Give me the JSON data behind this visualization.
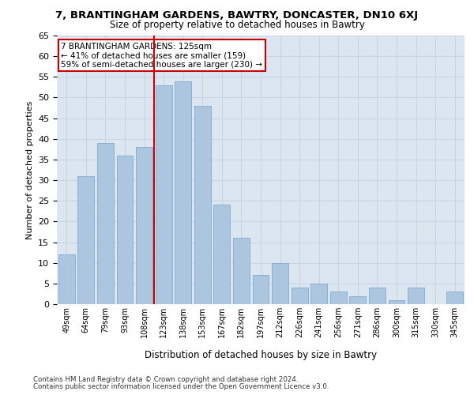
{
  "title_line1": "7, BRANTINGHAM GARDENS, BAWTRY, DONCASTER, DN10 6XJ",
  "title_line2": "Size of property relative to detached houses in Bawtry",
  "xlabel": "Distribution of detached houses by size in Bawtry",
  "ylabel": "Number of detached properties",
  "categories": [
    "49sqm",
    "64sqm",
    "79sqm",
    "93sqm",
    "108sqm",
    "123sqm",
    "138sqm",
    "153sqm",
    "167sqm",
    "182sqm",
    "197sqm",
    "212sqm",
    "226sqm",
    "241sqm",
    "256sqm",
    "271sqm",
    "286sqm",
    "300sqm",
    "315sqm",
    "330sqm",
    "345sqm"
  ],
  "values": [
    12,
    31,
    39,
    36,
    38,
    53,
    54,
    48,
    24,
    16,
    7,
    10,
    4,
    5,
    3,
    2,
    4,
    1,
    4,
    0,
    3
  ],
  "bar_color": "#adc6e0",
  "bar_edge_color": "#8aafd4",
  "vline_color": "#cc0000",
  "ylim": [
    0,
    65
  ],
  "yticks": [
    0,
    5,
    10,
    15,
    20,
    25,
    30,
    35,
    40,
    45,
    50,
    55,
    60,
    65
  ],
  "annotation_text": "7 BRANTINGHAM GARDENS: 125sqm\n← 41% of detached houses are smaller (159)\n59% of semi-detached houses are larger (230) →",
  "annotation_box_color": "#ffffff",
  "annotation_box_edge": "#cc0000",
  "grid_color": "#c8d4e4",
  "bg_color": "#dce6f0",
  "footer1": "Contains HM Land Registry data © Crown copyright and database right 2024.",
  "footer2": "Contains public sector information licensed under the Open Government Licence v3.0."
}
